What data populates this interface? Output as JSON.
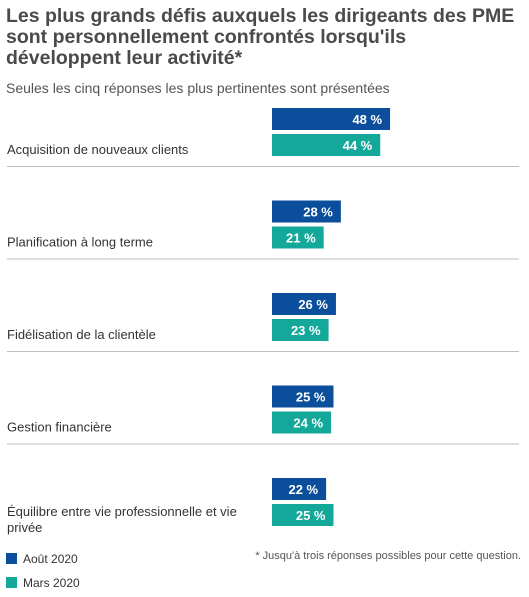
{
  "title": "Les plus grands défis auxquels les dirigeants des PME sont personnellement confrontés lorsqu'ils développent leur activité*",
  "subtitle": "Seules les cinq réponses les plus pertinentes sont présentées",
  "footnote": "* Jusqu'à trois réponses possibles pour cette question.",
  "colors": {
    "aout": "#0b4f9c",
    "mars": "#14a89b",
    "divider": "#bfbfbf"
  },
  "chart_data": {
    "type": "bar",
    "orientation": "horizontal",
    "categories": [
      "Acquisition de nouveaux clients",
      "Planification à long terme",
      "Fidélisation de la clientèle",
      "Gestion financière",
      "Équilibre entre vie professionnelle et vie privée"
    ],
    "series": [
      {
        "name": "Août 2020",
        "values": [
          48,
          28,
          26,
          25,
          22
        ],
        "labels": [
          "48 %",
          "28 %",
          "26 %",
          "25 %",
          "22 %"
        ]
      },
      {
        "name": "Mars 2020",
        "values": [
          44,
          21,
          23,
          24,
          25
        ],
        "labels": [
          "44 %",
          "21 %",
          "23 %",
          "24 %",
          "25 %"
        ]
      }
    ],
    "legend_position": "bottom-left",
    "grid": false
  }
}
